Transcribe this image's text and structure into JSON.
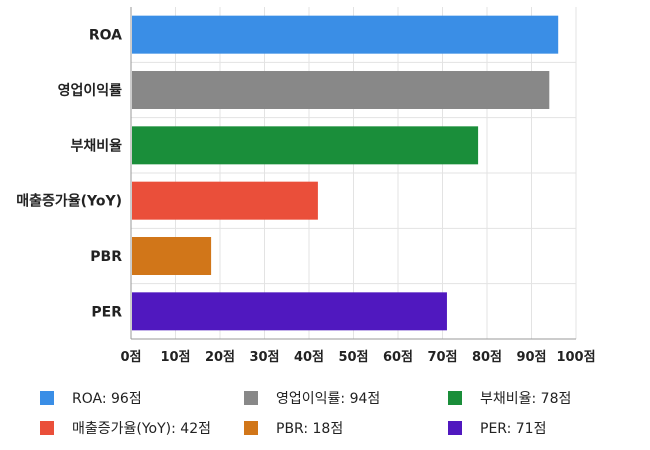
{
  "chart_data": {
    "type": "bar",
    "orientation": "horizontal",
    "categories": [
      "ROA",
      "영업이익률",
      "부채비율",
      "매출증가율(YoY)",
      "PBR",
      "PER"
    ],
    "values": [
      96,
      94,
      78,
      42,
      18,
      71
    ],
    "colors": [
      "#3a8ee6",
      "#888888",
      "#1a8e3a",
      "#ea4f3a",
      "#d17619",
      "#5018bf"
    ],
    "xlim": [
      0,
      100
    ],
    "xticks": [
      0,
      10,
      20,
      30,
      40,
      50,
      60,
      70,
      80,
      90,
      100
    ],
    "tick_suffix": "점",
    "grid": true,
    "legend_position": "bottom",
    "legend": [
      {
        "label": "ROA: 96점",
        "color": "#3a8ee6"
      },
      {
        "label": "영업이익률: 94점",
        "color": "#888888"
      },
      {
        "label": "부채비율: 78점",
        "color": "#1a8e3a"
      },
      {
        "label": "매출증가율(YoY): 42점",
        "color": "#ea4f3a"
      },
      {
        "label": "PBR: 18점",
        "color": "#d17619"
      },
      {
        "label": "PER: 71점",
        "color": "#5018bf"
      }
    ]
  }
}
